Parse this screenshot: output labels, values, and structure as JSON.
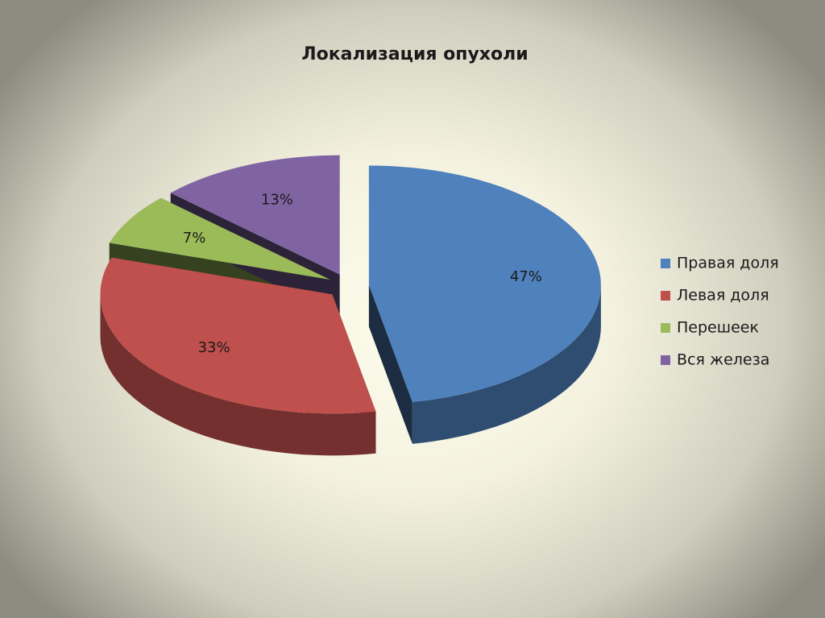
{
  "chart_data": {
    "type": "pie",
    "title": "Локализация опухоли",
    "categories": [
      "Правая доля",
      "Левая доля",
      "Перешеек",
      "Вся железа"
    ],
    "values": [
      47,
      33,
      7,
      13
    ],
    "value_labels": [
      "47%",
      "33%",
      "7%",
      "13%"
    ],
    "colors": [
      "#4f81bd",
      "#c0504d",
      "#9bbb59",
      "#8064a2"
    ],
    "legend": "right"
  }
}
